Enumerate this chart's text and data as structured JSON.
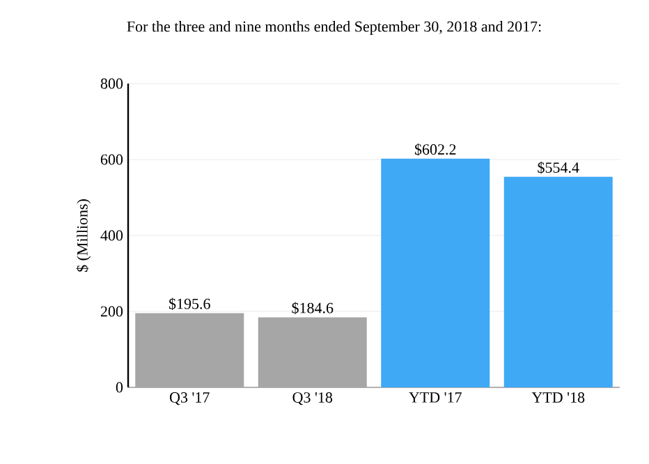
{
  "chart_data": {
    "type": "bar",
    "title": "For the three and nine months ended September 30, 2018 and 2017:",
    "ylabel": "$ (Millions)",
    "categories": [
      "Q3 '17",
      "Q3 '18",
      "YTD '17",
      "YTD '18"
    ],
    "values": [
      195.6,
      184.6,
      602.2,
      554.4
    ],
    "colors": [
      "#a6a6a6",
      "#a6a6a6",
      "#3fa9f5",
      "#3fa9f5"
    ],
    "value_labels": [
      "$195.6",
      "$184.6",
      "$602.2",
      "$554.4"
    ],
    "ylim": [
      0,
      800
    ],
    "yticks": [
      0,
      200,
      400,
      600,
      800
    ],
    "grid": "y"
  }
}
